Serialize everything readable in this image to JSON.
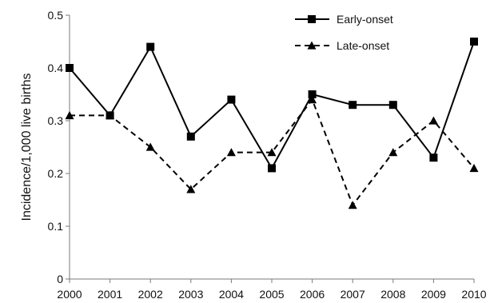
{
  "chart_data": {
    "type": "line",
    "x": [
      "2000",
      "2001",
      "2002",
      "2003",
      "2004",
      "2005",
      "2006",
      "2007",
      "2008",
      "2009",
      "2010"
    ],
    "series": [
      {
        "name": "Early-onset",
        "values": [
          0.4,
          0.31,
          0.44,
          0.27,
          0.34,
          0.21,
          0.35,
          0.33,
          0.33,
          0.23,
          0.45
        ],
        "line_style": "solid",
        "marker": "square",
        "color": "#000000"
      },
      {
        "name": "Late-onset",
        "values": [
          0.31,
          0.31,
          0.25,
          0.17,
          0.24,
          0.24,
          0.34,
          0.14,
          0.24,
          0.3,
          0.21
        ],
        "line_style": "dashed",
        "marker": "triangle",
        "color": "#000000"
      }
    ],
    "title": "",
    "xlabel": "",
    "ylabel": "Incidence/1,000 live births",
    "ylim": [
      0,
      0.5
    ],
    "yticks": [
      "0",
      "0.1",
      "0.2",
      "0.3",
      "0.4",
      "0.5"
    ],
    "grid": false,
    "legend_position": "top-right"
  }
}
